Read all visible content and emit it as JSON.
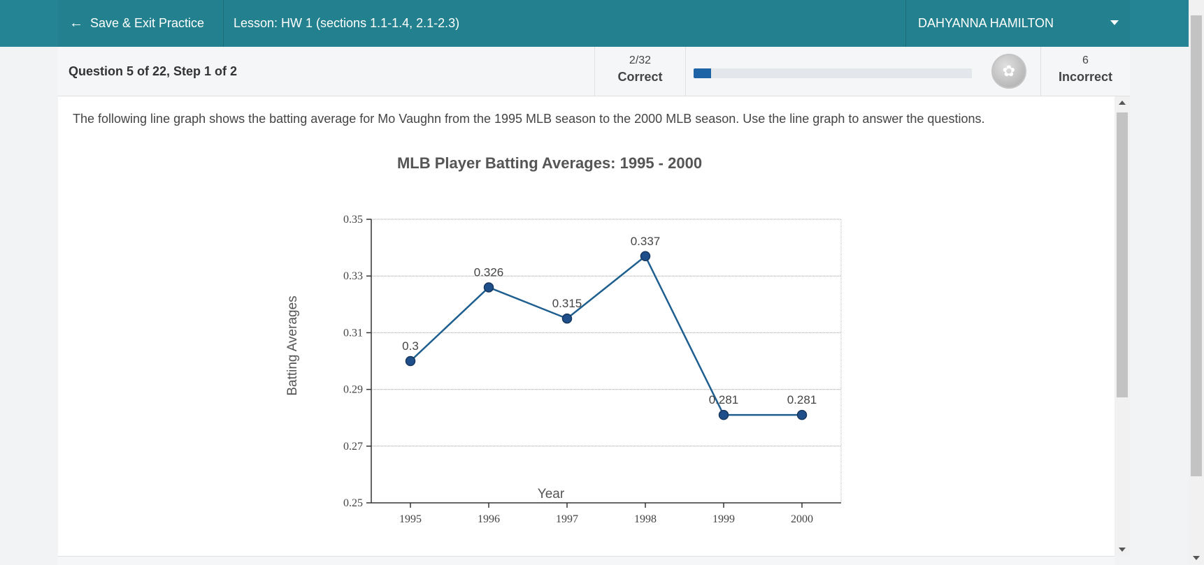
{
  "header": {
    "exit_label": "Save & Exit Practice",
    "lesson_label": "Lesson: HW 1 (sections 1.1-1.4, 2.1-2.3)",
    "user_name": "DAHYANNA HAMILTON"
  },
  "status": {
    "question_label": "Question 5 of 22,  Step 1 of 2",
    "correct_count": "2/32",
    "correct_label": "Correct",
    "incorrect_count": "6",
    "incorrect_label": "Incorrect",
    "progress_fraction": 0.0625
  },
  "question": {
    "prompt": "The following line graph shows the batting average for Mo Vaughn from the 1995 MLB season to the 2000 MLB season. Use the line graph to answer the questions."
  },
  "chart_data": {
    "type": "line",
    "title": "MLB Player Batting Averages: 1995 - 2000",
    "xlabel": "Year",
    "ylabel": "Batting Averages",
    "x": [
      "1995",
      "1996",
      "1997",
      "1998",
      "1999",
      "2000"
    ],
    "values": [
      0.3,
      0.326,
      0.315,
      0.337,
      0.281,
      0.281
    ],
    "data_labels": [
      "0.3",
      "0.326",
      "0.315",
      "0.337",
      "0.281",
      "0.281"
    ],
    "ylim": [
      0.25,
      0.35
    ],
    "yticks": [
      "0.25",
      "0.27",
      "0.29",
      "0.31",
      "0.33",
      "0.35"
    ],
    "grid": true,
    "line_color": "#1f5f8f",
    "marker_color": "#1f4f8a"
  }
}
